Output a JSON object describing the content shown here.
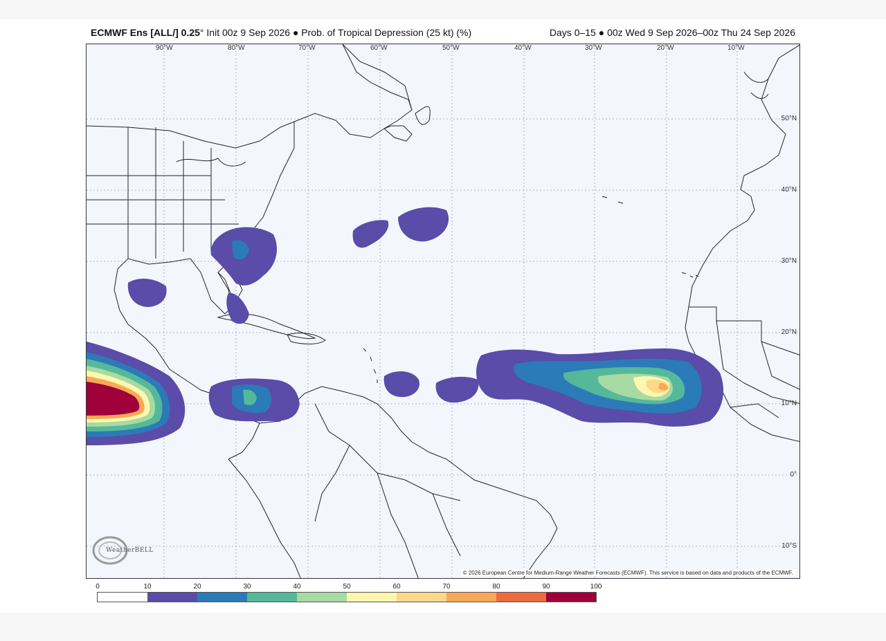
{
  "header": {
    "model": "ECMWF Ens [ALL/] 0.25",
    "degree_mark": "°",
    "description": "Init 00z 9 Sep 2026 ● Prob. of Tropical Depression (25 kt) (%)",
    "period": "Days 0–15 ● 00z Wed 9 Sep 2026–00z Thu 24 Sep 2026"
  },
  "map": {
    "lon_labels": [
      "90°W",
      "80°W",
      "70°W",
      "60°W",
      "50°W",
      "40°W",
      "30°W",
      "20°W",
      "10°W"
    ],
    "lat_labels": [
      "50°N",
      "40°N",
      "30°N",
      "20°N",
      "10°N",
      "0°",
      "10°S"
    ],
    "credit": "© 2026 European Centre for Medium-Range Weather Forecasts (ECMWF). This service is based on data and products of the ECMWF.",
    "logo_text": "WeatherBELL"
  },
  "colorbar": {
    "ticks": [
      "0",
      "10",
      "20",
      "30",
      "40",
      "50",
      "60",
      "70",
      "80",
      "90",
      "100"
    ],
    "colors": [
      "#ffffff",
      "#5a4ca8",
      "#2b7bb9",
      "#55b89a",
      "#a7dba3",
      "#fdf7b0",
      "#fdd88a",
      "#f9a855",
      "#ee6b3d",
      "#a0003a"
    ]
  }
}
